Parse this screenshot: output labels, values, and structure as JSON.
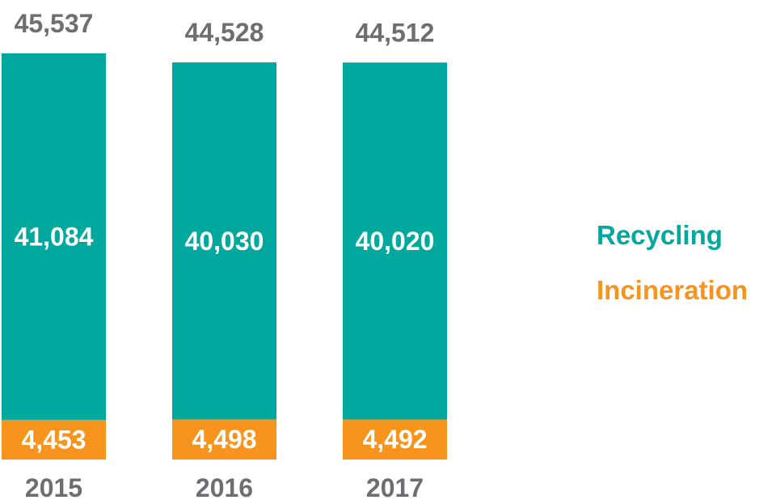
{
  "chart_data": {
    "type": "bar",
    "stacked": true,
    "categories": [
      "2015",
      "2016",
      "2017"
    ],
    "series": [
      {
        "name": "Incineration",
        "values": [
          4453,
          4498,
          4492
        ],
        "labels": [
          "4,453",
          "4,498",
          "4,492"
        ],
        "color": "#F7941D"
      },
      {
        "name": "Recycling",
        "values": [
          41084,
          40030,
          40020
        ],
        "labels": [
          "41,084",
          "40,030",
          "40,020"
        ],
        "color": "#00A89D"
      }
    ],
    "totals": [
      45537,
      44528,
      44512
    ],
    "total_labels": [
      "45,537",
      "44,528",
      "44,512"
    ],
    "title": "",
    "xlabel": "",
    "ylabel": "",
    "legend_position": "right",
    "grid": false,
    "label_color": "#6D6E71",
    "inner_label_color": "#ffffff"
  }
}
